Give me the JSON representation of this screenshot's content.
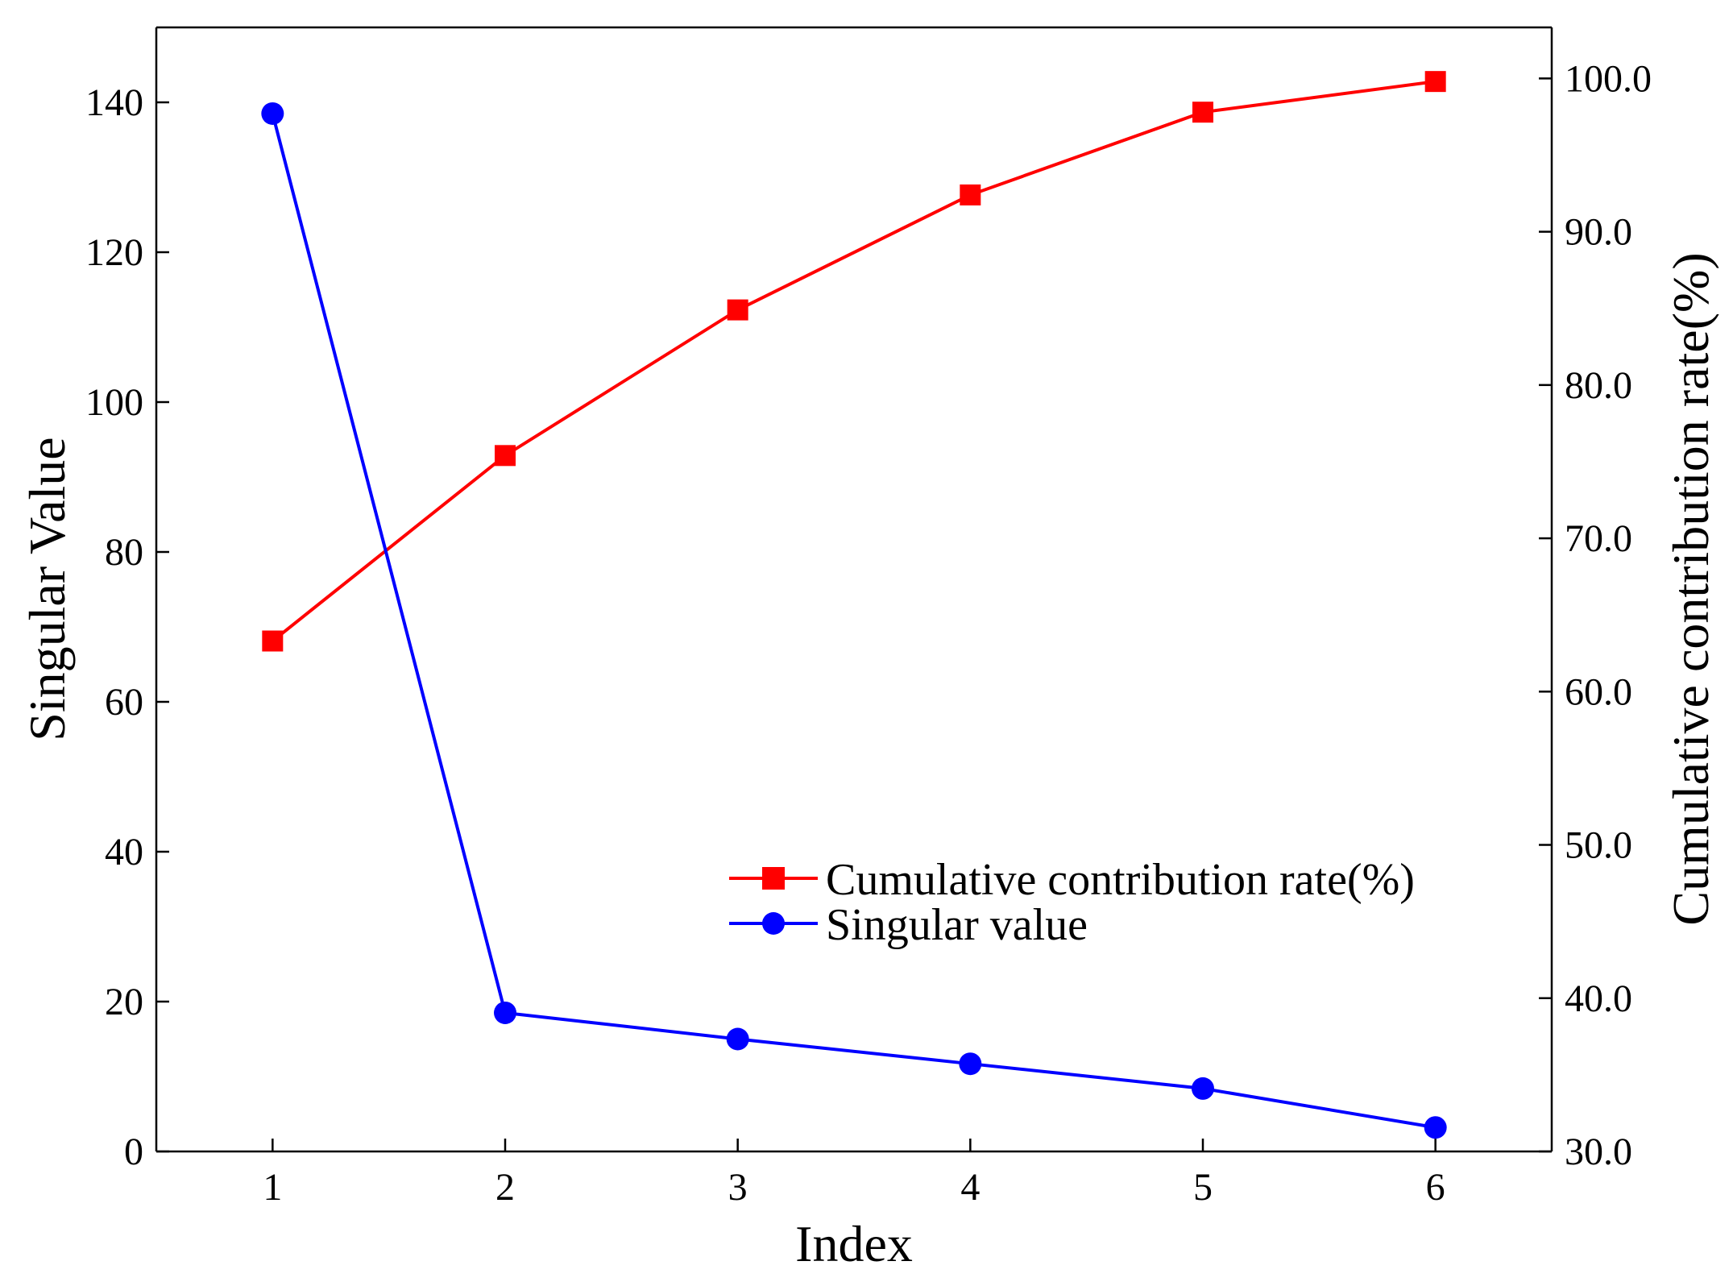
{
  "chart_data": {
    "type": "line",
    "title": "",
    "xlabel": "Index",
    "ylabel": "Singular Value",
    "y2label": "Cumulative contribution rate(%)",
    "x": [
      1,
      2,
      3,
      4,
      5,
      6
    ],
    "xlim": [
      0.5,
      6.5
    ],
    "ylim": [
      0,
      150
    ],
    "y2lim": [
      30,
      103.33
    ],
    "x_ticks": [
      "1",
      "2",
      "3",
      "4",
      "5",
      "6"
    ],
    "y_ticks": [
      "0",
      "20",
      "40",
      "60",
      "80",
      "100",
      "120",
      "140"
    ],
    "y2_ticks": [
      "30.0",
      "40.0",
      "50.0",
      "60.0",
      "70.0",
      "80.0",
      "90.0",
      "100.0"
    ],
    "grid": false,
    "legend_position": "bottom-right",
    "series": [
      {
        "name": "Cumulative contribution rate(%)",
        "axis": "right",
        "color": "#ff0000",
        "marker": "square",
        "values": [
          63.3,
          75.4,
          84.9,
          92.4,
          97.8,
          99.8
        ]
      },
      {
        "name": "Singular value",
        "axis": "left",
        "color": "#0000ff",
        "marker": "circle",
        "values": [
          138.5,
          18.5,
          15.0,
          11.7,
          8.4,
          3.2
        ]
      }
    ]
  }
}
